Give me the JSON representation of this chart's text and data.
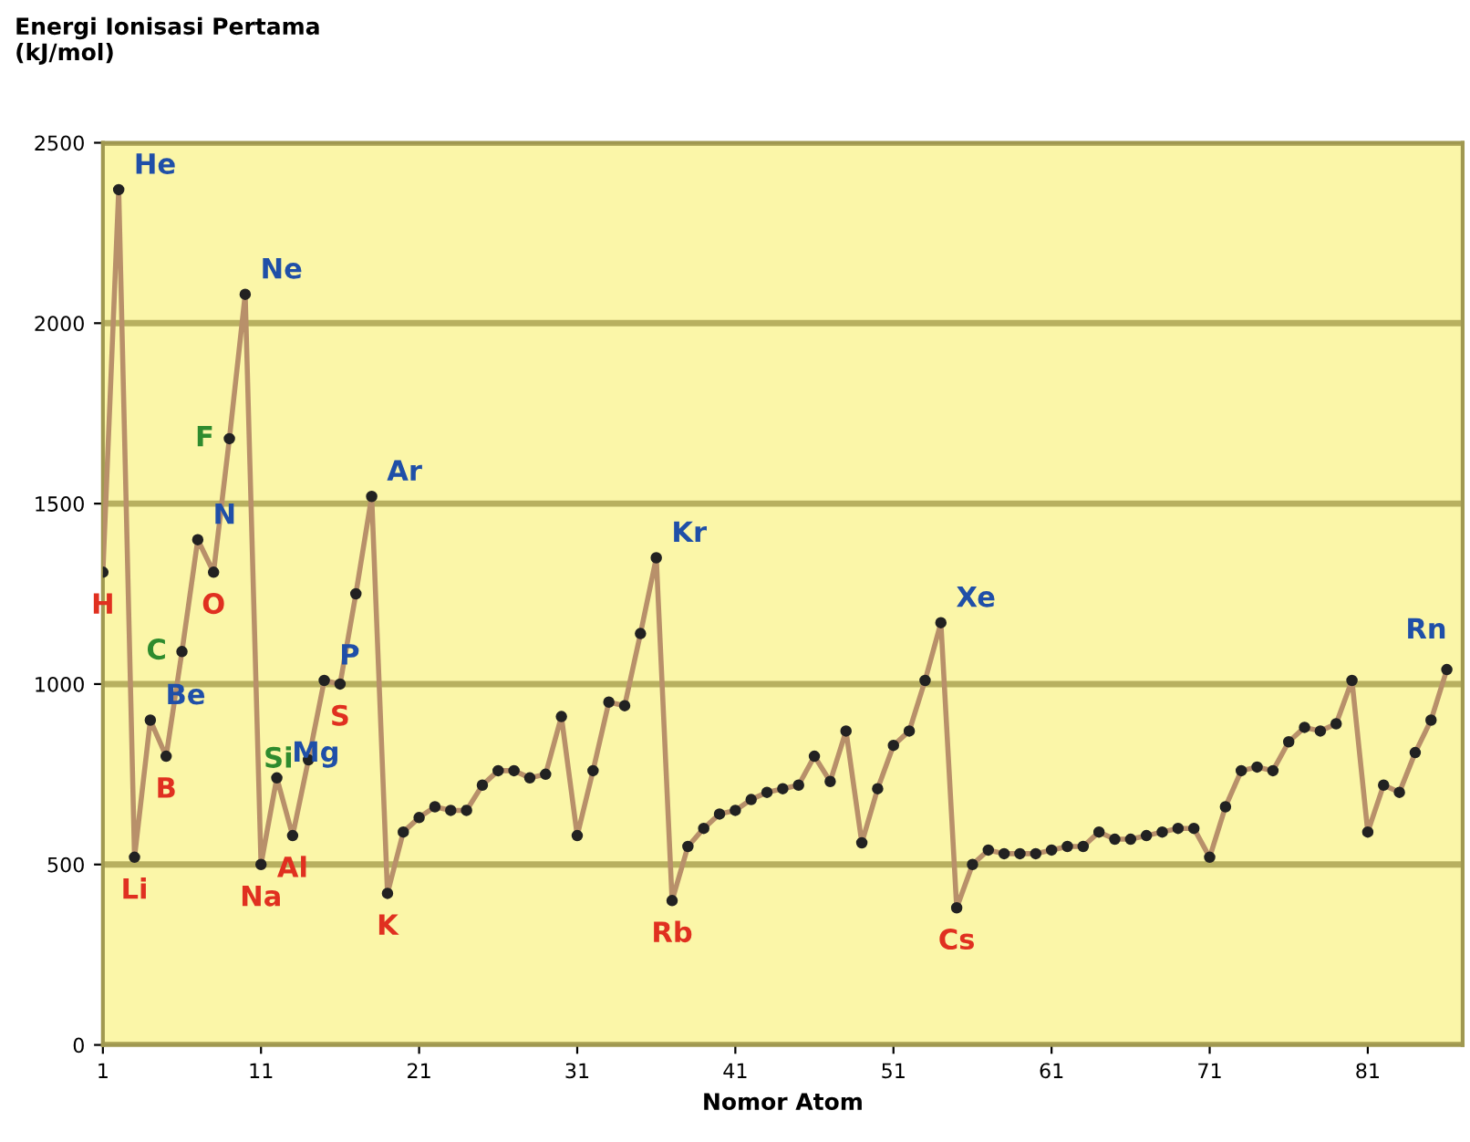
{
  "chart_data": {
    "type": "line",
    "ylabel": "Energi Ionisasi Pertama\n(kJ/mol)",
    "xlabel": "Nomor Atom",
    "x": [
      1,
      2,
      3,
      4,
      5,
      6,
      7,
      8,
      9,
      10,
      11,
      12,
      13,
      14,
      15,
      16,
      17,
      18,
      19,
      20,
      21,
      22,
      23,
      24,
      25,
      26,
      27,
      28,
      29,
      30,
      31,
      32,
      33,
      34,
      35,
      36,
      37,
      38,
      39,
      40,
      41,
      42,
      43,
      44,
      45,
      46,
      47,
      48,
      49,
      50,
      51,
      52,
      53,
      54,
      55,
      56,
      57,
      58,
      59,
      60,
      61,
      62,
      63,
      64,
      65,
      66,
      67,
      68,
      69,
      70,
      71,
      72,
      73,
      74,
      75,
      76,
      77,
      78,
      79,
      80,
      81,
      82,
      83,
      84,
      85,
      86
    ],
    "series": [
      {
        "color": "#b8906a",
        "values": [
          1310,
          2370,
          520,
          900,
          800,
          1090,
          1400,
          1310,
          1680,
          2080,
          500,
          740,
          580,
          790,
          1010,
          1000,
          1250,
          1520,
          420,
          590,
          630,
          660,
          650,
          650,
          720,
          760,
          760,
          740,
          750,
          910,
          580,
          760,
          950,
          940,
          1140,
          1350,
          400,
          550,
          600,
          640,
          650,
          680,
          700,
          710,
          720,
          800,
          730,
          870,
          560,
          710,
          830,
          870,
          1010,
          1170,
          380,
          500,
          540,
          530,
          530,
          530,
          540,
          550,
          550,
          590,
          570,
          570,
          580,
          590,
          600,
          600,
          520,
          660,
          760,
          770,
          760,
          840,
          880,
          870,
          890,
          1010,
          590,
          720,
          700,
          810,
          900,
          1040
        ]
      }
    ],
    "marker": "circle",
    "line_style": "solid",
    "xlim": [
      1,
      87
    ],
    "xticks": [
      1,
      11,
      21,
      31,
      41,
      51,
      61,
      71,
      81
    ],
    "ylim": [
      0,
      2500
    ],
    "yticks": [
      0,
      500,
      1000,
      1500,
      2000,
      2500
    ],
    "grid": "y",
    "annotations": [
      {
        "text": "He",
        "x": 2,
        "y": 2370
      },
      {
        "text": "Ne",
        "x": 10,
        "y": 2080
      },
      {
        "text": "Ar",
        "x": 18,
        "y": 1520
      },
      {
        "text": "Kr",
        "x": 36,
        "y": 1350
      },
      {
        "text": "Xe",
        "x": 54,
        "y": 1170
      },
      {
        "text": "Rn",
        "x": 86,
        "y": 1040
      },
      {
        "text": "Li",
        "x": 3,
        "y": 520
      },
      {
        "text": "Na",
        "x": 11,
        "y": 500
      },
      {
        "text": "K",
        "x": 19,
        "y": 420
      },
      {
        "text": "Rb",
        "x": 37,
        "y": 400
      },
      {
        "text": "Cs",
        "x": 55,
        "y": 380
      },
      {
        "text": "H",
        "x": 1,
        "y": 1310
      },
      {
        "text": "Be",
        "x": 4,
        "y": 900
      },
      {
        "text": "B",
        "x": 5,
        "y": 800
      },
      {
        "text": "C",
        "x": 6,
        "y": 1090
      },
      {
        "text": "N",
        "x": 7,
        "y": 1400
      },
      {
        "text": "O",
        "x": 8,
        "y": 1310
      },
      {
        "text": "F",
        "x": 9,
        "y": 1680
      },
      {
        "text": "Mg",
        "x": 12,
        "y": 740
      },
      {
        "text": "Al",
        "x": 13,
        "y": 580
      },
      {
        "text": "Si",
        "x": 14,
        "y": 790
      },
      {
        "text": "P",
        "x": 15,
        "y": 1010
      },
      {
        "text": "S",
        "x": 16,
        "y": 1000
      }
    ]
  }
}
